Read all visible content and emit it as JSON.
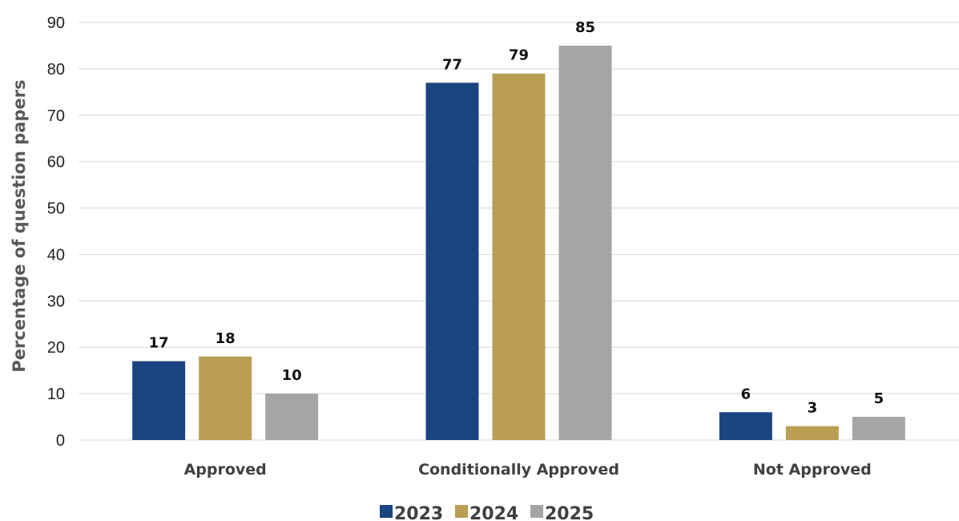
{
  "chart_data": {
    "type": "bar",
    "categories": [
      "Approved",
      "Conditionally Approved",
      "Not Approved"
    ],
    "series": [
      {
        "name": "2023",
        "values": [
          17,
          77,
          6
        ],
        "color": "#1b4581"
      },
      {
        "name": "2024",
        "values": [
          18,
          79,
          3
        ],
        "color": "#b99e53"
      },
      {
        "name": "2025",
        "values": [
          10,
          85,
          5
        ],
        "color": "#a5a5a5"
      }
    ],
    "title": "",
    "xlabel": "",
    "ylabel": "Percentage of question papers",
    "ylim": [
      0,
      90
    ],
    "yticks": [
      0,
      10,
      20,
      30,
      40,
      50,
      60,
      70,
      80,
      90
    ],
    "grid": true,
    "legend_position": "bottom",
    "data_labels": true,
    "gridline_color": "#d9d9d9"
  }
}
